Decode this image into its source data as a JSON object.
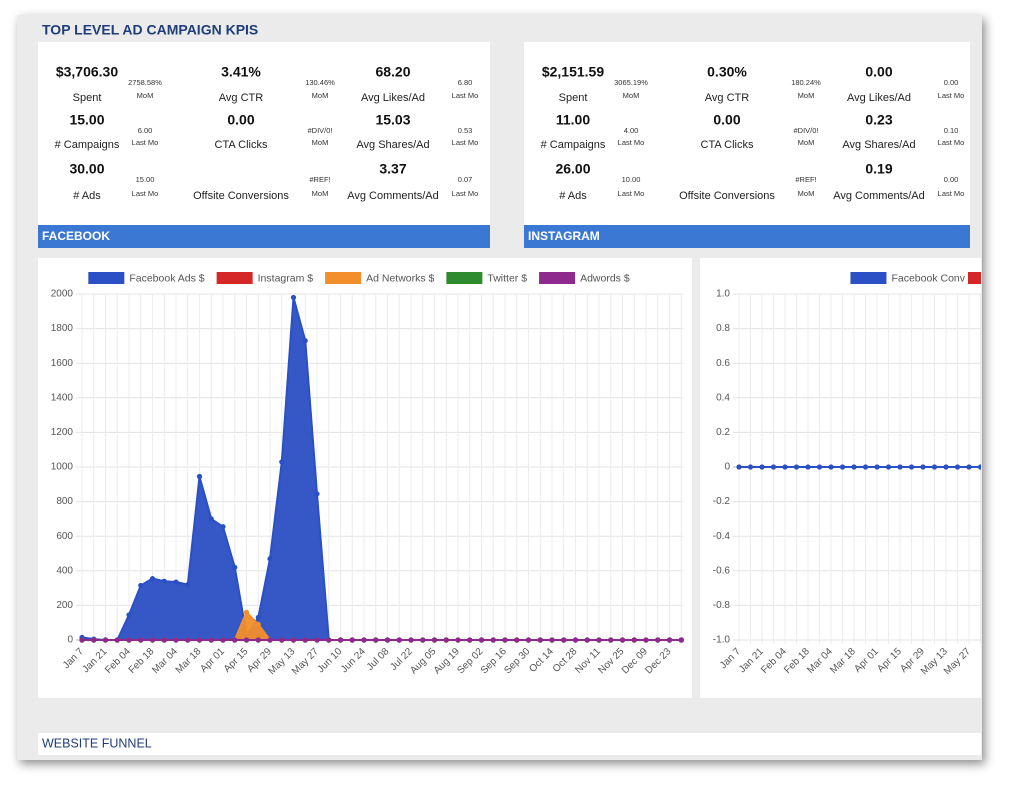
{
  "header": {
    "title": "TOP LEVEL AD CAMPAIGN KPIS"
  },
  "kpis": [
    {
      "name": "FACEBOOK",
      "rows": [
        [
          {
            "value": "$3,706.30",
            "label": "Spent",
            "compare": "2758.58%",
            "compare_label": "MoM"
          },
          {
            "value": "3.41%",
            "label": "Avg CTR",
            "compare": "130.46%",
            "compare_label": "MoM"
          },
          {
            "value": "68.20",
            "label": "Avg Likes/Ad",
            "compare": "6.80",
            "compare_label": "Last Mo"
          }
        ],
        [
          {
            "value": "15.00",
            "label": "# Campaigns",
            "compare": "6.00",
            "compare_label": "Last Mo"
          },
          {
            "value": "0.00",
            "label": "CTA Clicks",
            "compare": "#DIV/0!",
            "compare_label": "MoM"
          },
          {
            "value": "15.03",
            "label": "Avg Shares/Ad",
            "compare": "0.53",
            "compare_label": "Last Mo"
          }
        ],
        [
          {
            "value": "30.00",
            "label": "# Ads",
            "compare": "15.00",
            "compare_label": "Last Mo"
          },
          {
            "label": "Offsite Conversions",
            "compare": "#REF!",
            "compare_label": "MoM"
          },
          {
            "value": "3.37",
            "label": "Avg Comments/Ad",
            "compare": "0.07",
            "compare_label": "Last Mo"
          }
        ]
      ]
    },
    {
      "name": "INSTAGRAM",
      "rows": [
        [
          {
            "value": "$2,151.59",
            "label": "Spent",
            "compare": "3065.19%",
            "compare_label": "MoM"
          },
          {
            "value": "0.30%",
            "label": "Avg CTR",
            "compare": "180.24%",
            "compare_label": "MoM"
          },
          {
            "value": "0.00",
            "label": "Avg Likes/Ad",
            "compare": "0.00",
            "compare_label": "Last Mo"
          }
        ],
        [
          {
            "value": "11.00",
            "label": "# Campaigns",
            "compare": "4.00",
            "compare_label": "Last Mo"
          },
          {
            "value": "0.00",
            "label": "CTA Clicks",
            "compare": "#DIV/0!",
            "compare_label": "MoM"
          },
          {
            "value": "0.23",
            "label": "Avg Shares/Ad",
            "compare": "0.10",
            "compare_label": "Last Mo"
          }
        ],
        [
          {
            "value": "26.00",
            "label": "# Ads",
            "compare": "10.00",
            "compare_label": "Last Mo"
          },
          {
            "label": "Offsite Conversions",
            "compare": "#REF!",
            "compare_label": "MoM"
          },
          {
            "value": "0.19",
            "label": "Avg Comments/Ad",
            "compare": "0.00",
            "compare_label": "Last Mo"
          }
        ]
      ]
    }
  ],
  "chart_data": [
    {
      "type": "area",
      "categories": [
        "Jan 7",
        null,
        "Jan 21",
        null,
        "Feb 04",
        null,
        "Feb 18",
        null,
        "Mar 04",
        null,
        "Mar 18",
        null,
        "Apr 01",
        null,
        "Apr 15",
        null,
        "Apr 29",
        null,
        "May 13",
        null,
        "May 27",
        null,
        "Jun 10",
        null,
        "Jun 24",
        null,
        "Jul 08",
        null,
        "Jul 22",
        null,
        "Aug 05",
        null,
        "Aug 19",
        null,
        "Sep 02",
        null,
        "Sep 16",
        null,
        "Sep 30",
        null,
        "Oct 14",
        null,
        "Oct 28",
        null,
        "Nov 11",
        null,
        "Nov 25",
        null,
        "Dec 09",
        null,
        "Dec 23",
        null
      ],
      "series": [
        {
          "name": "Facebook Ads $",
          "color": "#2b4fc4",
          "values": [
            15,
            5,
            0,
            0,
            145,
            315,
            355,
            340,
            335,
            320,
            945,
            700,
            655,
            420,
            30,
            130,
            470,
            1030,
            1980,
            1730,
            845,
            0,
            0,
            0,
            0,
            0,
            0,
            0,
            0,
            0,
            0,
            0,
            0,
            0,
            0,
            0,
            0,
            0,
            0,
            0,
            0,
            0,
            0,
            0,
            0,
            0,
            0,
            0,
            0,
            0,
            0,
            0
          ]
        },
        {
          "name": "Instagram $",
          "color": "#d62728",
          "values": [
            0,
            0,
            0,
            0,
            0,
            0,
            0,
            0,
            0,
            0,
            0,
            0,
            0,
            0,
            0,
            0,
            0,
            0,
            0,
            0,
            0,
            0,
            0,
            0,
            0,
            0,
            0,
            0,
            0,
            0,
            0,
            0,
            0,
            0,
            0,
            0,
            0,
            0,
            0,
            0,
            0,
            0,
            0,
            0,
            0,
            0,
            0,
            0,
            0,
            0,
            0,
            0
          ]
        },
        {
          "name": "Ad Networks $",
          "color": "#f28e2b",
          "values": [
            0,
            0,
            0,
            0,
            0,
            0,
            0,
            0,
            0,
            0,
            0,
            0,
            0,
            0,
            160,
            90,
            0,
            0,
            0,
            0,
            0,
            0,
            0,
            0,
            0,
            0,
            0,
            0,
            0,
            0,
            0,
            0,
            0,
            0,
            0,
            0,
            0,
            0,
            0,
            0,
            0,
            0,
            0,
            0,
            0,
            0,
            0,
            0,
            0,
            0,
            0,
            0
          ]
        },
        {
          "name": "Twitter $",
          "color": "#2e8b2e",
          "values": [
            0,
            0,
            0,
            0,
            0,
            0,
            0,
            0,
            0,
            0,
            0,
            0,
            0,
            0,
            0,
            0,
            0,
            0,
            0,
            0,
            0,
            0,
            0,
            0,
            0,
            0,
            0,
            0,
            0,
            0,
            0,
            0,
            0,
            0,
            0,
            0,
            0,
            0,
            0,
            0,
            0,
            0,
            0,
            0,
            0,
            0,
            0,
            0,
            0,
            0,
            0,
            0
          ]
        },
        {
          "name": "Adwords $",
          "color": "#8e2a8e",
          "values": [
            0,
            0,
            0,
            0,
            0,
            0,
            0,
            0,
            0,
            0,
            0,
            0,
            0,
            0,
            0,
            0,
            0,
            0,
            0,
            0,
            0,
            0,
            0,
            0,
            0,
            0,
            0,
            0,
            0,
            0,
            0,
            0,
            0,
            0,
            0,
            0,
            0,
            0,
            0,
            0,
            0,
            0,
            0,
            0,
            0,
            0,
            0,
            0,
            0,
            0,
            0,
            0
          ]
        }
      ],
      "ylim": [
        0,
        2000
      ],
      "yticks": [
        0,
        200,
        400,
        600,
        800,
        1000,
        1200,
        1400,
        1600,
        1800,
        2000
      ],
      "grid": true,
      "legend": "top"
    },
    {
      "type": "line",
      "categories": [
        "Jan 7",
        null,
        "Jan 21",
        null,
        "Feb 04",
        null,
        "Feb 18",
        null,
        "Mar 04",
        null,
        "Mar 18",
        null,
        "Apr 01",
        null,
        "Apr 15",
        null,
        "Apr 29",
        null,
        "May 13",
        null,
        "May 27",
        null
      ],
      "series": [
        {
          "name": "Facebook Conv",
          "color": "#2b4fc4",
          "values": [
            0,
            0,
            0,
            0,
            0,
            0,
            0,
            0,
            0,
            0,
            0,
            0,
            0,
            0,
            0,
            0,
            0,
            0,
            0,
            0,
            0,
            0
          ]
        }
      ],
      "ylim": [
        -1,
        1
      ],
      "yticks": [
        {
          "value": -1,
          "label": "-1.0"
        },
        -0.8,
        -0.6,
        -0.4,
        -0.2,
        0,
        0.2,
        0.4,
        0.6,
        0.8,
        {
          "value": 1,
          "label": "1.0"
        }
      ],
      "grid": true,
      "legend": "top"
    }
  ],
  "footer": {
    "title": "WEBSITE FUNNEL"
  }
}
